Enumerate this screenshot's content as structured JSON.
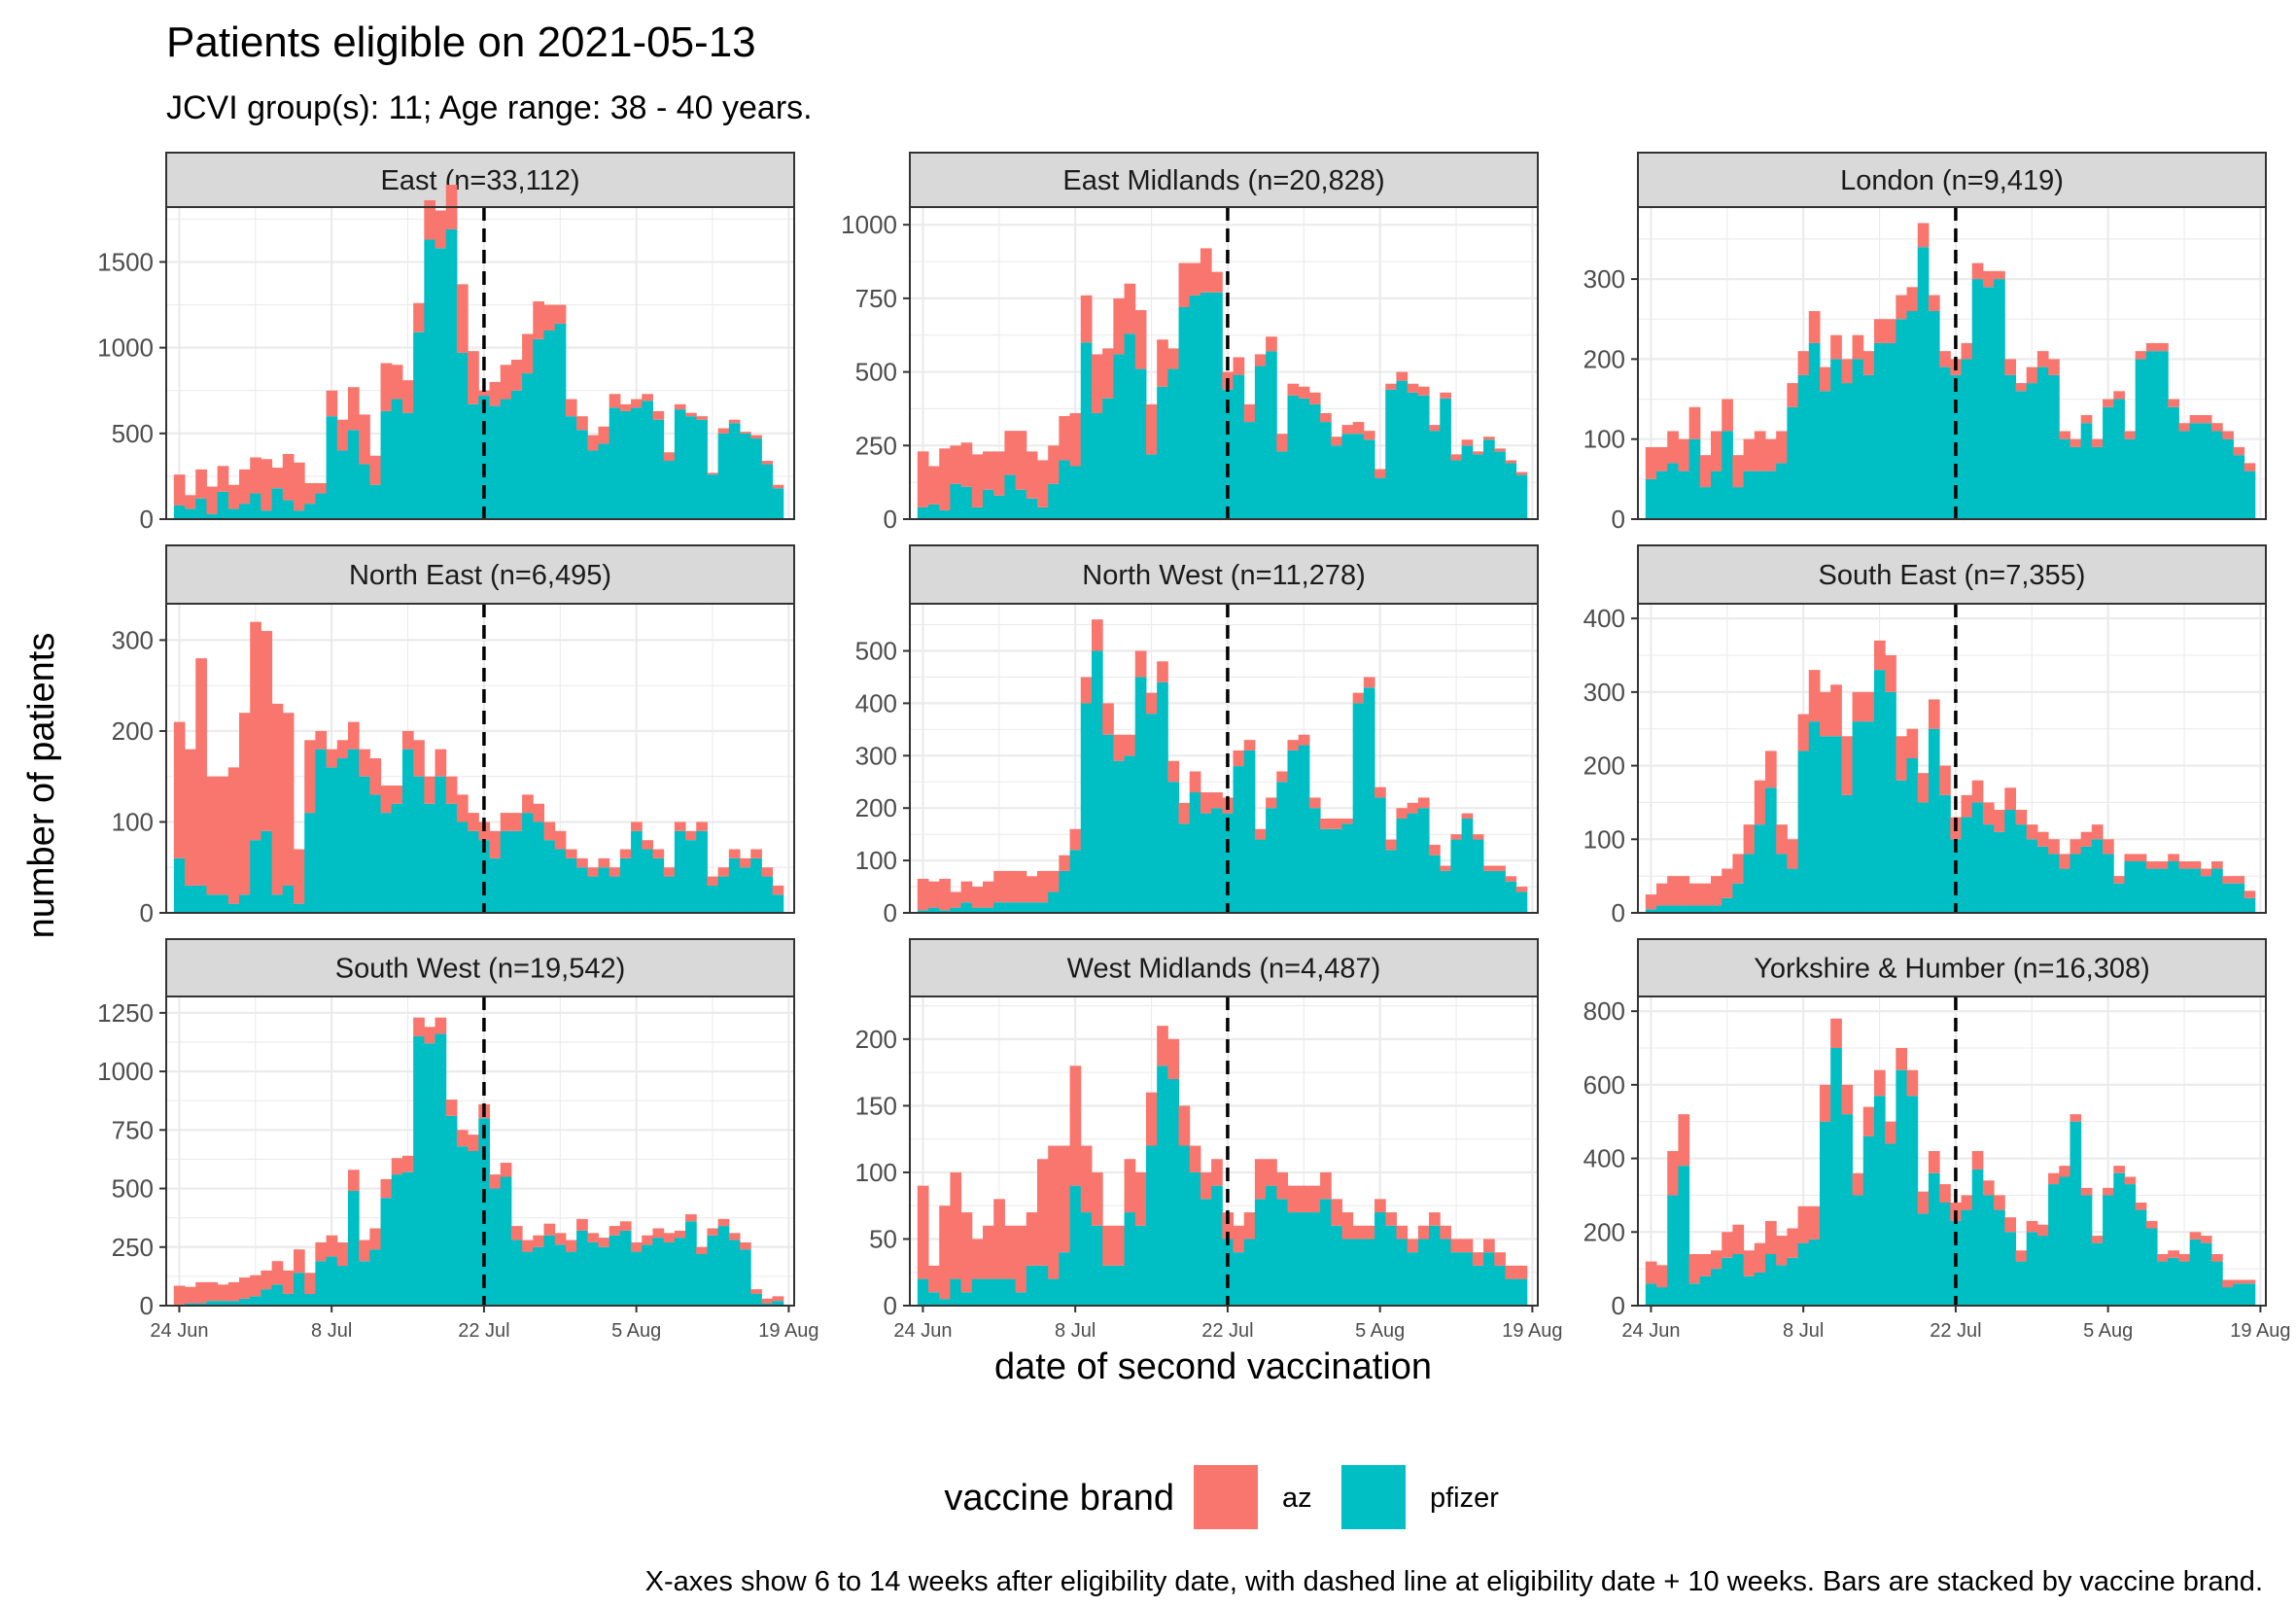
{
  "title": "Patients eligible on 2021-05-13",
  "subtitle": "JCVI group(s): 11; Age range: 38 - 40 years.",
  "caption": "X-axes show 6 to 14 weeks after eligibility date, with dashed line at eligibility date + 10 weeks. Bars are stacked by vaccine brand.",
  "colors": {
    "az": "#F8766D",
    "pfizer": "#00BFC4"
  },
  "chart_data": {
    "type": "bar",
    "stacked": true,
    "faceted": true,
    "xlabel": "date of second vaccination",
    "ylabel": "number of patients",
    "x_ticks": [
      {
        "date": "2021-06-24",
        "label": "24 Jun"
      },
      {
        "date": "2021-07-08",
        "label": "8 Jul"
      },
      {
        "date": "2021-07-22",
        "label": "22 Jul"
      },
      {
        "date": "2021-08-05",
        "label": "5 Aug"
      },
      {
        "date": "2021-08-19",
        "label": "19 Aug"
      }
    ],
    "x_range": [
      "2021-06-24",
      "2021-08-18"
    ],
    "reference_line": "2021-07-22",
    "legend": {
      "title": "vaccine brand",
      "position": "bottom",
      "items": [
        "az",
        "pfizer"
      ]
    },
    "grid": true,
    "panels": [
      {
        "label": "East (n=33,112)",
        "ylim": [
          0,
          1820
        ],
        "yticks": [
          0,
          500,
          1000,
          1500
        ],
        "az": [
          180,
          80,
          170,
          160,
          150,
          140,
          200,
          210,
          300,
          120,
          270,
          280,
          120,
          60,
          150,
          180,
          250,
          290,
          170,
          280,
          200,
          190,
          170,
          230,
          220,
          260,
          400,
          310,
          30,
          140,
          200,
          180,
          230,
          220,
          150,
          110,
          100,
          80,
          90,
          100,
          80,
          40,
          50,
          40,
          50,
          50,
          30,
          20,
          20,
          10,
          30,
          20,
          10,
          20,
          20,
          20
        ],
        "pfizer": [
          80,
          60,
          120,
          30,
          160,
          60,
          90,
          150,
          50,
          180,
          110,
          50,
          90,
          150,
          600,
          400,
          520,
          320,
          200,
          630,
          700,
          620,
          1090,
          1630,
          1580,
          1690,
          970,
          670,
          720,
          660,
          700,
          750,
          850,
          1050,
          1100,
          1140,
          600,
          520,
          400,
          440,
          650,
          630,
          650,
          690,
          580,
          340,
          640,
          600,
          580,
          260,
          500,
          560,
          500,
          470,
          320,
          180
        ]
      },
      {
        "label": "East Midlands (n=20,828)",
        "ylim": [
          0,
          1060
        ],
        "yticks": [
          0,
          250,
          500,
          750,
          1000
        ],
        "az": [
          190,
          130,
          210,
          130,
          150,
          180,
          130,
          150,
          150,
          200,
          160,
          160,
          130,
          150,
          180,
          160,
          200,
          170,
          190,
          170,
          200,
          170,
          160,
          70,
          150,
          110,
          150,
          70,
          60,
          60,
          60,
          40,
          50,
          60,
          40,
          40,
          40,
          30,
          30,
          30,
          40,
          30,
          30,
          20,
          30,
          30,
          30,
          20,
          20,
          20,
          20,
          10,
          10,
          10,
          10,
          10
        ],
        "pfizer": [
          40,
          50,
          30,
          120,
          110,
          40,
          100,
          80,
          150,
          100,
          70,
          40,
          120,
          200,
          180,
          600,
          360,
          410,
          560,
          630,
          510,
          220,
          450,
          510,
          720,
          760,
          770,
          770,
          440,
          490,
          330,
          520,
          570,
          230,
          420,
          410,
          390,
          330,
          250,
          290,
          290,
          270,
          140,
          440,
          470,
          430,
          420,
          300,
          410,
          200,
          250,
          220,
          270,
          230,
          190,
          150
        ]
      },
      {
        "label": "London (n=9,419)",
        "ylim": [
          0,
          390
        ],
        "yticks": [
          0,
          100,
          200,
          300
        ],
        "az": [
          40,
          30,
          40,
          40,
          40,
          40,
          50,
          40,
          40,
          40,
          50,
          40,
          40,
          30,
          30,
          40,
          30,
          30,
          30,
          30,
          30,
          30,
          30,
          30,
          30,
          30,
          20,
          20,
          20,
          20,
          20,
          20,
          10,
          20,
          10,
          20,
          20,
          20,
          10,
          10,
          10,
          10,
          10,
          10,
          10,
          10,
          10,
          10,
          10,
          10,
          10,
          10,
          10,
          10,
          10,
          10
        ],
        "pfizer": [
          50,
          60,
          70,
          60,
          100,
          40,
          60,
          110,
          40,
          60,
          60,
          60,
          70,
          140,
          180,
          220,
          160,
          200,
          170,
          200,
          180,
          220,
          220,
          250,
          260,
          340,
          260,
          190,
          180,
          200,
          300,
          290,
          300,
          180,
          160,
          170,
          190,
          180,
          100,
          90,
          120,
          90,
          140,
          150,
          100,
          200,
          210,
          210,
          140,
          110,
          120,
          120,
          110,
          100,
          80,
          60
        ]
      },
      {
        "label": "North East (n=6,495)",
        "ylim": [
          0,
          340
        ],
        "yticks": [
          0,
          100,
          200,
          300
        ],
        "az": [
          150,
          150,
          250,
          130,
          130,
          150,
          200,
          240,
          220,
          210,
          190,
          60,
          80,
          20,
          20,
          20,
          30,
          30,
          40,
          30,
          20,
          20,
          40,
          30,
          30,
          30,
          30,
          20,
          20,
          30,
          20,
          20,
          20,
          20,
          20,
          20,
          10,
          10,
          10,
          10,
          10,
          10,
          10,
          10,
          10,
          10,
          10,
          10,
          10,
          10,
          10,
          10,
          10,
          10,
          10,
          10
        ],
        "pfizer": [
          60,
          30,
          30,
          20,
          20,
          10,
          20,
          80,
          90,
          20,
          30,
          10,
          110,
          180,
          160,
          170,
          180,
          150,
          130,
          110,
          120,
          180,
          150,
          120,
          150,
          120,
          100,
          90,
          80,
          60,
          90,
          90,
          110,
          100,
          80,
          70,
          60,
          50,
          40,
          50,
          40,
          60,
          90,
          70,
          60,
          40,
          90,
          80,
          90,
          30,
          40,
          60,
          50,
          60,
          40,
          20
        ]
      },
      {
        "label": "North West (n=11,278)",
        "ylim": [
          0,
          590
        ],
        "yticks": [
          0,
          100,
          200,
          300,
          400,
          500
        ],
        "az": [
          60,
          50,
          60,
          30,
          40,
          40,
          50,
          60,
          60,
          60,
          50,
          60,
          40,
          30,
          40,
          50,
          60,
          60,
          50,
          40,
          50,
          40,
          40,
          40,
          40,
          40,
          40,
          30,
          30,
          30,
          20,
          20,
          20,
          20,
          20,
          20,
          20,
          20,
          20,
          10,
          20,
          20,
          20,
          20,
          20,
          20,
          20,
          20,
          10,
          10,
          10,
          10,
          10,
          10,
          10,
          10
        ],
        "pfizer": [
          5,
          10,
          5,
          10,
          20,
          10,
          10,
          20,
          20,
          20,
          20,
          20,
          40,
          80,
          120,
          400,
          500,
          340,
          290,
          300,
          450,
          380,
          440,
          250,
          170,
          230,
          190,
          200,
          190,
          280,
          310,
          140,
          200,
          250,
          310,
          320,
          200,
          160,
          160,
          170,
          400,
          430,
          220,
          120,
          180,
          190,
          200,
          110,
          80,
          140,
          180,
          140,
          80,
          80,
          60,
          40
        ]
      },
      {
        "label": "South East (n=7,355)",
        "ylim": [
          0,
          420
        ],
        "yticks": [
          0,
          100,
          200,
          300,
          400
        ],
        "az": [
          20,
          30,
          40,
          40,
          30,
          30,
          40,
          40,
          40,
          40,
          60,
          50,
          40,
          40,
          50,
          70,
          60,
          70,
          80,
          40,
          40,
          40,
          50,
          60,
          40,
          40,
          40,
          40,
          30,
          30,
          30,
          30,
          30,
          30,
          20,
          20,
          20,
          20,
          20,
          20,
          20,
          20,
          20,
          10,
          10,
          10,
          10,
          10,
          10,
          10,
          10,
          10,
          10,
          10,
          10,
          10
        ],
        "pfizer": [
          5,
          10,
          10,
          10,
          10,
          10,
          10,
          20,
          40,
          80,
          120,
          170,
          80,
          60,
          220,
          260,
          240,
          240,
          160,
          260,
          260,
          330,
          300,
          180,
          210,
          150,
          250,
          160,
          100,
          130,
          150,
          120,
          110,
          140,
          120,
          100,
          90,
          80,
          60,
          80,
          90,
          100,
          80,
          40,
          70,
          70,
          60,
          60,
          70,
          60,
          60,
          50,
          60,
          40,
          40,
          20
        ]
      },
      {
        "label": "South West (n=19,542)",
        "ylim": [
          0,
          1320
        ],
        "yticks": [
          0,
          250,
          500,
          750,
          1000,
          1250
        ],
        "az": [
          80,
          70,
          90,
          80,
          70,
          80,
          90,
          90,
          80,
          100,
          100,
          100,
          90,
          80,
          90,
          100,
          90,
          90,
          90,
          80,
          70,
          70,
          80,
          70,
          70,
          70,
          70,
          70,
          60,
          60,
          60,
          60,
          50,
          50,
          50,
          50,
          50,
          50,
          40,
          40,
          40,
          40,
          40,
          40,
          40,
          40,
          30,
          30,
          30,
          30,
          30,
          30,
          30,
          20,
          20,
          20
        ],
        "pfizer": [
          5,
          10,
          10,
          20,
          20,
          20,
          30,
          40,
          70,
          90,
          50,
          140,
          50,
          190,
          210,
          170,
          490,
          190,
          240,
          460,
          560,
          570,
          1150,
          1120,
          1160,
          810,
          680,
          660,
          800,
          500,
          550,
          280,
          230,
          250,
          300,
          260,
          230,
          320,
          270,
          250,
          300,
          320,
          230,
          260,
          290,
          270,
          290,
          360,
          220,
          300,
          340,
          280,
          240,
          50,
          10,
          20
        ]
      },
      {
        "label": "West Midlands (n=4,487)",
        "ylim": [
          0,
          232
        ],
        "yticks": [
          0,
          50,
          100,
          150,
          200
        ],
        "az": [
          70,
          20,
          70,
          80,
          60,
          30,
          40,
          60,
          40,
          50,
          40,
          80,
          100,
          80,
          90,
          50,
          40,
          30,
          30,
          40,
          40,
          40,
          30,
          30,
          30,
          20,
          20,
          20,
          20,
          20,
          20,
          30,
          20,
          20,
          20,
          20,
          20,
          20,
          20,
          20,
          10,
          10,
          10,
          10,
          10,
          10,
          10,
          10,
          10,
          10,
          10,
          10,
          10,
          10,
          10,
          10
        ],
        "pfizer": [
          20,
          10,
          5,
          20,
          10,
          20,
          20,
          20,
          20,
          10,
          30,
          30,
          20,
          40,
          90,
          70,
          60,
          30,
          30,
          70,
          60,
          120,
          180,
          170,
          120,
          100,
          80,
          90,
          50,
          40,
          50,
          80,
          90,
          80,
          70,
          70,
          70,
          80,
          60,
          50,
          50,
          50,
          70,
          60,
          50,
          40,
          50,
          60,
          50,
          40,
          40,
          30,
          40,
          30,
          20,
          20
        ]
      },
      {
        "label": "Yorkshire & Humber (n=16,308)",
        "ylim": [
          0,
          840
        ],
        "yticks": [
          0,
          200,
          400,
          600,
          800
        ],
        "az": [
          60,
          60,
          120,
          140,
          80,
          60,
          50,
          70,
          80,
          70,
          80,
          90,
          80,
          80,
          100,
          90,
          100,
          80,
          80,
          60,
          80,
          70,
          60,
          60,
          70,
          60,
          60,
          50,
          50,
          40,
          50,
          40,
          40,
          40,
          30,
          30,
          30,
          30,
          30,
          20,
          20,
          20,
          20,
          20,
          20,
          20,
          20,
          20,
          20,
          20,
          20,
          20,
          20,
          20,
          10,
          10
        ],
        "pfizer": [
          60,
          50,
          300,
          380,
          60,
          80,
          100,
          130,
          140,
          80,
          90,
          140,
          110,
          130,
          170,
          180,
          500,
          700,
          520,
          300,
          460,
          570,
          440,
          640,
          570,
          250,
          360,
          280,
          230,
          260,
          370,
          300,
          260,
          200,
          120,
          200,
          190,
          330,
          350,
          500,
          300,
          170,
          300,
          360,
          330,
          260,
          210,
          120,
          130,
          120,
          180,
          170,
          120,
          50,
          60,
          60
        ]
      }
    ]
  }
}
